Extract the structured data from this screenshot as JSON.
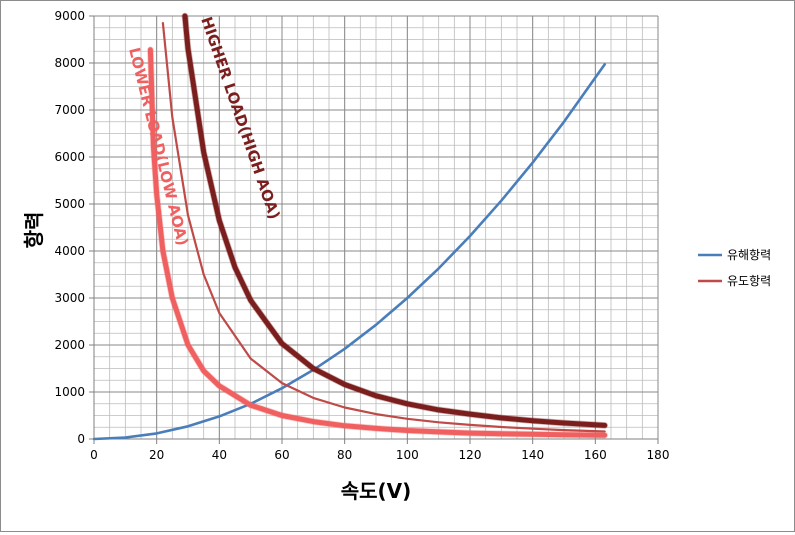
{
  "chart_data": {
    "type": "line",
    "xlabel": "속도(V)",
    "ylabel": "항력",
    "xlim": [
      0,
      180
    ],
    "ylim": [
      0,
      9000
    ],
    "x_ticks": [
      "0",
      "20",
      "40",
      "60",
      "80",
      "100",
      "120",
      "140",
      "160",
      "180"
    ],
    "y_ticks": [
      "0",
      "1000",
      "2000",
      "3000",
      "4000",
      "5000",
      "6000",
      "7000",
      "8000",
      "9000"
    ],
    "grid": true,
    "minor_grid": true,
    "legend_position": "right",
    "series": [
      {
        "name": "유해항력",
        "color": "#4a7ebb",
        "x": [
          0,
          10,
          20,
          30,
          40,
          50,
          60,
          70,
          80,
          90,
          100,
          110,
          120,
          130,
          140,
          150,
          163
        ],
        "y": [
          0,
          30,
          120,
          270,
          480,
          750,
          1080,
          1470,
          1920,
          2430,
          3000,
          3630,
          4320,
          5070,
          5880,
          6750,
          7970
        ]
      },
      {
        "name": "유도항력",
        "color": "#be4b48",
        "x": [
          22,
          25,
          30,
          35,
          40,
          50,
          60,
          70,
          80,
          90,
          100,
          110,
          120,
          130,
          140,
          150,
          163
        ],
        "y": [
          8850,
          6850,
          4760,
          3500,
          2680,
          1710,
          1190,
          875,
          670,
          530,
          430,
          355,
          300,
          255,
          220,
          190,
          160
        ]
      },
      {
        "name": "",
        "color": "#f06060",
        "x": [
          18,
          19,
          20,
          22,
          25,
          30,
          35,
          40,
          50,
          60,
          70,
          80,
          90,
          100,
          110,
          120,
          130,
          140,
          150,
          163
        ],
        "y": [
          8280,
          6200,
          5200,
          4000,
          3000,
          2000,
          1450,
          1130,
          720,
          500,
          370,
          280,
          225,
          180,
          150,
          125,
          110,
          100,
          90,
          80
        ]
      },
      {
        "name": "",
        "color": "#7b1e1e",
        "x": [
          29,
          30,
          35,
          40,
          45,
          50,
          60,
          70,
          80,
          90,
          100,
          110,
          120,
          130,
          140,
          150,
          163
        ],
        "y": [
          9000,
          8300,
          6100,
          4650,
          3650,
          2950,
          2030,
          1500,
          1160,
          920,
          750,
          620,
          530,
          450,
          390,
          340,
          290
        ]
      }
    ],
    "annotations": [
      {
        "text": "HIGHER LOAD(HIGH AOA)",
        "color": "#7b1e1e"
      },
      {
        "text": "LOWER LOAD(LOW AOA)",
        "color": "#f06060"
      }
    ]
  }
}
